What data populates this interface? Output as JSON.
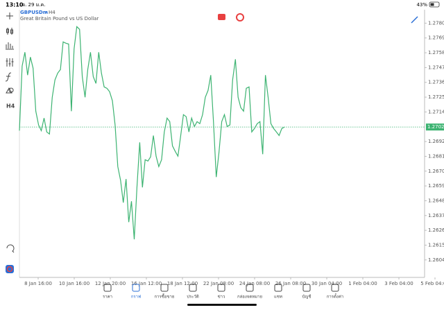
{
  "status_bar": {
    "time": "13:10",
    "date": "จ. 29 ม.ค.",
    "battery": "43%"
  },
  "header": {
    "symbol": "GBPUSDm",
    "timeframe": "H4",
    "description": "Great Britain Pound vs US Dollar"
  },
  "toolbar": {
    "timeframe": "H4"
  },
  "tabs": [
    "ราคา",
    "กราฟ",
    "การซื้อขาย",
    "ประวัติ",
    "ข่าว",
    "กล่องจดหมาย",
    "แชท",
    "บัญชี",
    "การตั้งค่า"
  ],
  "active_tab": 1,
  "chart_data": {
    "type": "line",
    "color": "#3cb371",
    "values": [
      1.27001,
      1.27481,
      1.27584,
      1.27414,
      1.27548,
      1.27465,
      1.27146,
      1.27043,
      1.27001,
      1.27094,
      1.26991,
      1.26976,
      1.27249,
      1.27378,
      1.27429,
      1.27455,
      1.27661,
      1.27651,
      1.27645,
      1.27146,
      1.27609,
      1.27774,
      1.27754,
      1.27403,
      1.27249,
      1.27455,
      1.27584,
      1.27403,
      1.27352,
      1.27584,
      1.27429,
      1.27326,
      1.27316,
      1.2729,
      1.27223,
      1.27043,
      1.26734,
      1.26631,
      1.26466,
      1.26641,
      1.26321,
      1.26476,
      1.26193,
      1.26579,
      1.26914,
      1.26579,
      1.26785,
      1.26775,
      1.26806,
      1.26965,
      1.26811,
      1.26734,
      1.26785,
      1.26991,
      1.27094,
      1.27068,
      1.26888,
      1.26847,
      1.26811,
      1.26965,
      1.2712,
      1.27105,
      1.26991,
      1.27094,
      1.27032,
      1.27068,
      1.27053,
      1.2712,
      1.27249,
      1.273,
      1.27414,
      1.27068,
      1.26656,
      1.26837,
      1.27068,
      1.2712,
      1.27032,
      1.27043,
      1.27378,
      1.27532,
      1.27249,
      1.27172,
      1.27146,
      1.27316,
      1.27326,
      1.26991,
      1.27017,
      1.27053,
      1.27068,
      1.26826,
      1.27414,
      1.27249,
      1.27053,
      1.27017,
      1.26991,
      1.26965,
      1.27017,
      1.27028
    ],
    "x_labels": [
      "8 Jan 16:00",
      "10 Jan 16:00",
      "12 Jan 20:00",
      "16 Jan 12:00",
      "18 Jan 12:00",
      "22 Jan 08:00",
      "24 Jan 08:00",
      "26 Jan 08:00",
      "30 Jan 04:00",
      "1 Feb 04:00",
      "3 Feb 04:00",
      "5 Feb 04:00"
    ],
    "ylim": [
      1.2591,
      1.279
    ],
    "yticks": [
      {
        "value": 1.278,
        "label": "1.27800"
      },
      {
        "value": 1.2769,
        "label": "1.27690"
      },
      {
        "value": 1.2758,
        "label": "1.27580"
      },
      {
        "value": 1.2747,
        "label": "1.27470"
      },
      {
        "value": 1.2736,
        "label": "1.27360"
      },
      {
        "value": 1.2725,
        "label": "1.27250"
      },
      {
        "value": 1.2714,
        "label": "1.27140"
      },
      {
        "value": 1.2692,
        "label": "1.26920"
      },
      {
        "value": 1.2681,
        "label": "1.26810"
      },
      {
        "value": 1.267,
        "label": "1.26700"
      },
      {
        "value": 1.2659,
        "label": "1.26590"
      },
      {
        "value": 1.2648,
        "label": "1.26480"
      },
      {
        "value": 1.2637,
        "label": "1.26370"
      },
      {
        "value": 1.2626,
        "label": "1.26260"
      },
      {
        "value": 1.2615,
        "label": "1.26150"
      },
      {
        "value": 1.2604,
        "label": "1.26040"
      }
    ],
    "current_price": 1.27028
  }
}
